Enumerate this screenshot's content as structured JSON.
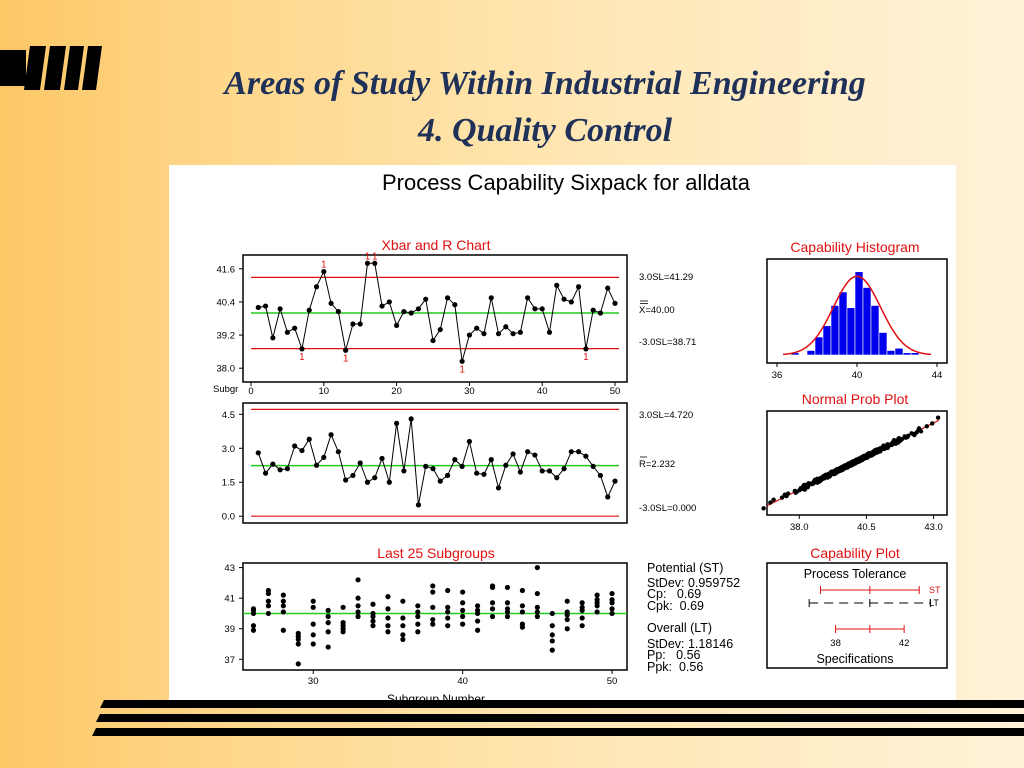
{
  "slide": {
    "title_line1": "Areas of Study Within Industrial Engineering",
    "title_line2": "4. Quality Control"
  },
  "colors": {
    "limit": "#e01010",
    "center": "#22cc22",
    "bar": "#0000ee",
    "title": "#1f3158"
  },
  "chart_data": {
    "type": "sixpack",
    "title": "Process Capability Sixpack for alldata",
    "xbar": {
      "title": "Xbar and R Chart",
      "ucl_label": "3.0SL=41.29",
      "cl_label": "X=40.00",
      "lcl_label": "-3.0SL=38.71",
      "ucl": 41.29,
      "cl": 40.0,
      "lcl": 38.71,
      "ylim": [
        37.5,
        42.1
      ],
      "yticks": [
        "41.6",
        "40.4",
        "39.2",
        "38.0"
      ],
      "ytick_values": [
        41.6,
        40.4,
        39.2,
        38.0
      ],
      "xlabel": "Subgr",
      "xticks": [
        "0",
        "10",
        "20",
        "30",
        "40",
        "50"
      ],
      "xtick_values": [
        0,
        10,
        20,
        30,
        40,
        50
      ],
      "x": [
        1,
        2,
        3,
        4,
        5,
        6,
        7,
        8,
        9,
        10,
        11,
        12,
        13,
        14,
        15,
        16,
        17,
        18,
        19,
        20,
        21,
        22,
        23,
        24,
        25,
        26,
        27,
        28,
        29,
        30,
        31,
        32,
        33,
        34,
        35,
        36,
        37,
        38,
        39,
        40,
        41,
        42,
        43,
        44,
        45,
        46,
        47,
        48,
        49,
        50
      ],
      "values": [
        40.2,
        40.25,
        39.1,
        40.15,
        39.3,
        39.45,
        38.7,
        40.1,
        40.95,
        41.5,
        40.35,
        40.05,
        38.65,
        39.6,
        39.6,
        41.8,
        41.8,
        40.25,
        40.4,
        39.55,
        40.05,
        40.0,
        40.15,
        40.5,
        39.0,
        39.4,
        40.55,
        40.3,
        38.25,
        39.2,
        39.45,
        39.25,
        40.55,
        39.25,
        39.5,
        39.25,
        39.3,
        40.55,
        40.15,
        40.15,
        39.3,
        41.0,
        40.5,
        40.4,
        40.95,
        38.7,
        40.1,
        40.0,
        40.9,
        40.35
      ],
      "flag_symbol": "1",
      "flagged_x": [
        7,
        10,
        13,
        16,
        17,
        29,
        46
      ]
    },
    "range": {
      "ucl_label": "3.0SL=4.720",
      "cl_label": "R=2.232",
      "lcl_label": "-3.0SL=0.000",
      "ucl": 4.72,
      "cl": 2.232,
      "lcl": 0.0,
      "ylim": [
        -0.3,
        5.0
      ],
      "yticks": [
        "4.5",
        "3.0",
        "1.5",
        "0.0"
      ],
      "ytick_values": [
        4.5,
        3.0,
        1.5,
        0.0
      ],
      "values": [
        2.8,
        1.9,
        2.3,
        2.05,
        2.1,
        3.1,
        2.9,
        3.4,
        2.25,
        2.6,
        3.6,
        2.85,
        1.6,
        1.8,
        2.35,
        1.5,
        1.7,
        2.55,
        1.5,
        4.1,
        2.0,
        4.3,
        0.5,
        2.2,
        2.1,
        1.55,
        1.8,
        2.5,
        2.2,
        3.3,
        1.9,
        1.85,
        2.5,
        1.25,
        2.25,
        2.75,
        1.95,
        2.85,
        2.7,
        2.0,
        2.0,
        1.7,
        2.1,
        2.85,
        2.85,
        2.65,
        2.2,
        1.8,
        0.85,
        1.55
      ]
    },
    "last25": {
      "title": "Last 25 Subgroups",
      "xlabel": "Subgroup Number",
      "center": 40.0,
      "ylim": [
        36.3,
        43.3
      ],
      "yticks": [
        "43",
        "41",
        "39",
        "37"
      ],
      "ytick_values": [
        43,
        41,
        39,
        37
      ],
      "xlim": [
        25.3,
        51.0
      ],
      "xticks": [
        "30",
        "40",
        "50"
      ],
      "xtick_values": [
        30,
        40,
        50
      ],
      "points": [
        [
          26,
          40.3
        ],
        [
          26,
          40.0
        ],
        [
          26,
          39.2
        ],
        [
          26,
          38.9
        ],
        [
          26,
          40.2
        ],
        [
          27,
          41.3
        ],
        [
          27,
          40.8
        ],
        [
          27,
          40.5
        ],
        [
          27,
          40.0
        ],
        [
          27,
          41.5
        ],
        [
          28,
          41.2
        ],
        [
          28,
          40.5
        ],
        [
          28,
          40.1
        ],
        [
          28,
          38.9
        ],
        [
          28,
          40.8
        ],
        [
          29,
          38.7
        ],
        [
          29,
          38.3
        ],
        [
          29,
          38.0
        ],
        [
          29,
          36.7
        ],
        [
          29,
          38.5
        ],
        [
          30,
          40.8
        ],
        [
          30,
          40.4
        ],
        [
          30,
          39.3
        ],
        [
          30,
          38.6
        ],
        [
          30,
          38.0
        ],
        [
          31,
          40.2
        ],
        [
          31,
          39.8
        ],
        [
          31,
          39.4
        ],
        [
          31,
          38.8
        ],
        [
          31,
          37.8
        ],
        [
          32,
          40.4
        ],
        [
          32,
          39.4
        ],
        [
          32,
          39.2
        ],
        [
          32,
          38.8
        ],
        [
          32,
          39.0
        ],
        [
          33,
          42.2
        ],
        [
          33,
          41.0
        ],
        [
          33,
          40.5
        ],
        [
          33,
          40.1
        ],
        [
          33,
          39.8
        ],
        [
          34,
          40.6
        ],
        [
          34,
          39.8
        ],
        [
          34,
          39.5
        ],
        [
          34,
          39.2
        ],
        [
          34,
          40.0
        ],
        [
          35,
          41.1
        ],
        [
          35,
          40.3
        ],
        [
          35,
          39.7
        ],
        [
          35,
          39.2
        ],
        [
          35,
          38.8
        ],
        [
          36,
          40.8
        ],
        [
          36,
          39.7
        ],
        [
          36,
          39.2
        ],
        [
          36,
          38.6
        ],
        [
          36,
          38.3
        ],
        [
          37,
          40.5
        ],
        [
          37,
          39.8
        ],
        [
          37,
          39.3
        ],
        [
          37,
          38.8
        ],
        [
          37,
          40.1
        ],
        [
          38,
          41.8
        ],
        [
          38,
          41.4
        ],
        [
          38,
          40.4
        ],
        [
          38,
          39.6
        ],
        [
          38,
          39.3
        ],
        [
          39,
          41.5
        ],
        [
          39,
          40.1
        ],
        [
          39,
          39.7
        ],
        [
          39,
          39.2
        ],
        [
          39,
          40.4
        ],
        [
          40,
          41.4
        ],
        [
          40,
          40.7
        ],
        [
          40,
          40.2
        ],
        [
          40,
          39.8
        ],
        [
          40,
          39.3
        ],
        [
          41,
          40.5
        ],
        [
          41,
          40.2
        ],
        [
          41,
          39.5
        ],
        [
          41,
          38.9
        ],
        [
          41,
          40.0
        ],
        [
          42,
          41.8
        ],
        [
          42,
          41.7
        ],
        [
          42,
          40.7
        ],
        [
          42,
          40.3
        ],
        [
          42,
          39.8
        ],
        [
          43,
          41.7
        ],
        [
          43,
          40.7
        ],
        [
          43,
          40.3
        ],
        [
          43,
          40.1
        ],
        [
          43,
          39.8
        ],
        [
          44,
          41.5
        ],
        [
          44,
          40.5
        ],
        [
          44,
          40.1
        ],
        [
          44,
          39.3
        ],
        [
          44,
          39.1
        ],
        [
          45,
          43.0
        ],
        [
          45,
          41.3
        ],
        [
          45,
          40.4
        ],
        [
          45,
          40.1
        ],
        [
          45,
          39.8
        ],
        [
          46,
          40.0
        ],
        [
          46,
          39.2
        ],
        [
          46,
          38.6
        ],
        [
          46,
          38.2
        ],
        [
          46,
          37.6
        ],
        [
          47,
          40.8
        ],
        [
          47,
          40.1
        ],
        [
          47,
          39.6
        ],
        [
          47,
          39.0
        ],
        [
          47,
          39.9
        ],
        [
          48,
          40.7
        ],
        [
          48,
          40.2
        ],
        [
          48,
          39.7
        ],
        [
          48,
          39.2
        ],
        [
          48,
          40.4
        ],
        [
          49,
          41.2
        ],
        [
          49,
          40.9
        ],
        [
          49,
          40.5
        ],
        [
          49,
          40.1
        ],
        [
          49,
          40.7
        ],
        [
          50,
          41.3
        ],
        [
          50,
          40.7
        ],
        [
          50,
          40.3
        ],
        [
          50,
          40.0
        ],
        [
          50,
          40.9
        ]
      ]
    },
    "histogram": {
      "title": "Capability Histogram",
      "xticks": [
        "36",
        "40",
        "44"
      ],
      "xtick_values": [
        36,
        40,
        44
      ],
      "xlim": [
        35.5,
        44.5
      ],
      "ymax": 40,
      "bins": [
        [
          36.7,
          37.1,
          1
        ],
        [
          37.1,
          37.5,
          0
        ],
        [
          37.5,
          37.9,
          2
        ],
        [
          37.9,
          38.3,
          8
        ],
        [
          38.3,
          38.7,
          13
        ],
        [
          38.7,
          39.1,
          22
        ],
        [
          39.1,
          39.5,
          28
        ],
        [
          39.5,
          39.9,
          21
        ],
        [
          39.9,
          40.3,
          37
        ],
        [
          40.3,
          40.7,
          30
        ],
        [
          40.7,
          41.1,
          22
        ],
        [
          41.1,
          41.5,
          10
        ],
        [
          41.5,
          41.9,
          2
        ],
        [
          41.9,
          42.3,
          3
        ],
        [
          42.3,
          42.7,
          1
        ],
        [
          42.7,
          43.1,
          1
        ]
      ],
      "curve_mean": 40.0,
      "curve_sd": 1.18,
      "curve_peak": 35
    },
    "normal_prob": {
      "title": "Normal Prob Plot",
      "xticks": [
        "38.0",
        "40.5",
        "43.0"
      ],
      "xtick_values": [
        38.0,
        40.5,
        43.0
      ],
      "xlim": [
        36.8,
        43.5
      ],
      "ylim": [
        -3.3,
        3.3
      ],
      "n": 250,
      "mean": 40.0,
      "sd": 1.18
    },
    "capability_plot": {
      "title": "Capability Plot",
      "tolerance_label": "Process Tolerance",
      "spec_label": "Specifications",
      "st_label": "ST",
      "lt_label": "LT",
      "spec_ticks": [
        "38",
        "42"
      ],
      "spec_values": [
        38,
        42
      ],
      "xlim": [
        34.0,
        44.5
      ],
      "st_interval": [
        37.12,
        42.88
      ],
      "lt_interval": [
        36.46,
        43.54
      ],
      "spec_interval": [
        38.0,
        42.0
      ],
      "center": 40.0
    },
    "stats": {
      "potential_header": "Potential (ST)",
      "st_stdev": "StDev: 0.959752",
      "cp": "Cp:   0.69",
      "cpk": "Cpk:  0.69",
      "overall_header": "Overall (LT)",
      "lt_stdev": "StDev: 1.18146",
      "pp": "Pp:   0.56",
      "ppk": "Ppk:  0.56"
    }
  }
}
